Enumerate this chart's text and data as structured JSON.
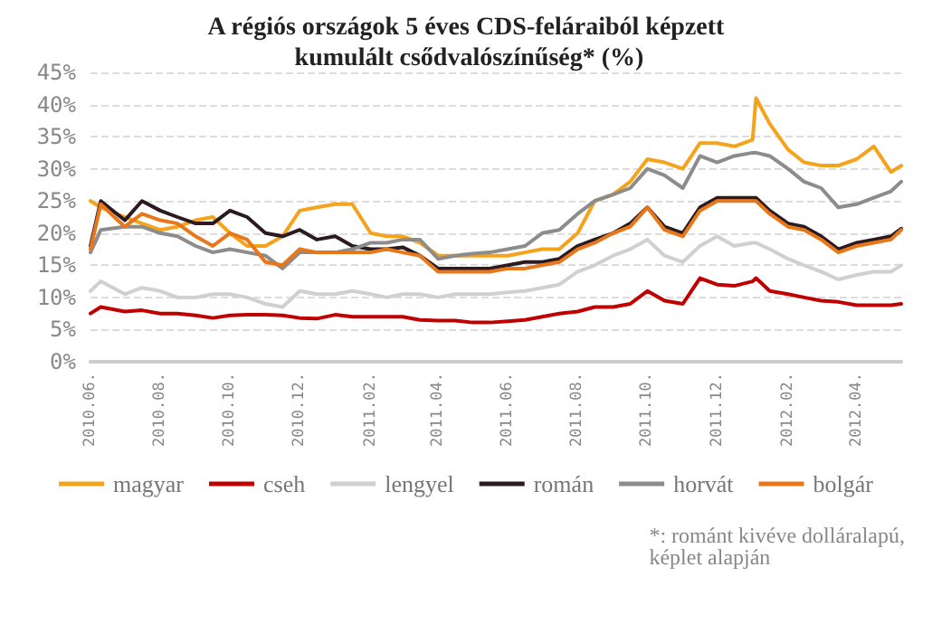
{
  "chart_data": {
    "type": "line",
    "title": "A régiós országok 5 éves CDS-feláraiból képzett kumulált csődvalószínűség* (%)",
    "x": [
      "2010-06-01",
      "2010-06-10",
      "2010-07-01",
      "2010-07-16",
      "2010-08-01",
      "2010-08-16",
      "2010-09-01",
      "2010-09-16",
      "2010-10-01",
      "2010-10-16",
      "2010-11-01",
      "2010-11-16",
      "2010-12-01",
      "2010-12-16",
      "2011-01-01",
      "2011-01-16",
      "2011-02-01",
      "2011-02-15",
      "2011-03-01",
      "2011-03-16",
      "2011-04-01",
      "2011-04-16",
      "2011-05-01",
      "2011-05-16",
      "2011-06-01",
      "2011-06-16",
      "2011-07-01",
      "2011-07-16",
      "2011-08-01",
      "2011-08-16",
      "2011-09-01",
      "2011-09-16",
      "2011-10-01",
      "2011-10-16",
      "2011-11-01",
      "2011-11-16",
      "2011-12-01",
      "2011-12-16",
      "2012-01-01",
      "2012-01-04",
      "2012-01-16",
      "2012-02-01",
      "2012-02-15",
      "2012-03-01",
      "2012-03-16",
      "2012-04-01",
      "2012-04-16",
      "2012-05-01",
      "2012-05-10"
    ],
    "series": [
      {
        "name": "magyar",
        "color": "#f5a31b",
        "values": [
          25,
          24,
          22.5,
          21.5,
          20.5,
          21,
          22,
          22.5,
          20,
          18,
          18,
          19.5,
          23.5,
          24,
          24.5,
          24.5,
          20,
          19.5,
          19.5,
          18.5,
          16.5,
          16.5,
          16.5,
          16.5,
          16.5,
          17,
          17.5,
          17.5,
          20,
          25,
          26,
          28,
          31.5,
          31,
          30,
          34,
          34,
          33.5,
          34.5,
          41,
          37,
          33,
          31,
          30.5,
          30.5,
          31.5,
          33.5,
          29.5,
          30.5
        ]
      },
      {
        "name": "cseh",
        "color": "#c00000",
        "values": [
          7.5,
          8.5,
          7.8,
          8,
          7.5,
          7.5,
          7.2,
          6.8,
          7.2,
          7.3,
          7.3,
          7.2,
          6.8,
          6.7,
          7.3,
          7,
          7,
          7,
          7,
          6.5,
          6.4,
          6.4,
          6.1,
          6.1,
          6.3,
          6.5,
          7,
          7.5,
          7.8,
          8.5,
          8.5,
          9,
          11,
          9.5,
          9,
          13,
          12,
          11.8,
          12.5,
          13,
          11,
          10.5,
          10,
          9.5,
          9.3,
          8.8,
          8.8,
          8.8,
          9
        ]
      },
      {
        "name": "lengyel",
        "color": "#d0d0d0",
        "values": [
          11,
          12.5,
          10.5,
          11.5,
          11,
          10,
          10,
          10.5,
          10.5,
          10,
          9,
          8.5,
          11,
          10.5,
          10.5,
          11,
          10.5,
          10,
          10.5,
          10.5,
          10,
          10.5,
          10.5,
          10.5,
          10.8,
          11,
          11.5,
          12,
          14,
          15,
          16.5,
          17.5,
          19,
          16.5,
          15.5,
          18,
          19.5,
          18,
          18.5,
          18.5,
          17.5,
          16,
          15,
          14,
          12.8,
          13.5,
          14,
          14,
          15
        ]
      },
      {
        "name": "román",
        "color": "#2b1a22",
        "values": [
          18,
          25,
          22,
          25,
          23.5,
          22.5,
          21.5,
          21.5,
          23.5,
          22.5,
          20,
          19.5,
          20.5,
          19,
          19.5,
          18,
          17.5,
          17.5,
          17.8,
          16.5,
          14.5,
          14.5,
          14.5,
          14.5,
          15,
          15.5,
          15.5,
          16,
          18,
          19,
          20,
          21.5,
          24,
          21,
          20,
          24,
          25.5,
          25.5,
          25.5,
          25.5,
          23.5,
          21.5,
          21,
          19.5,
          17.5,
          18.5,
          19,
          19.5,
          20.7
        ]
      },
      {
        "name": "horvát",
        "color": "#8c8c8c",
        "values": [
          17,
          20.5,
          21,
          21,
          20,
          19.5,
          18,
          17,
          17.5,
          17,
          16.5,
          14.5,
          17,
          17,
          17,
          17.5,
          18.5,
          18.5,
          19,
          19,
          16,
          16.5,
          16.8,
          17,
          17.5,
          18,
          20,
          20.5,
          23,
          25,
          26,
          27,
          30,
          29,
          27,
          32,
          31,
          32,
          32.5,
          32.5,
          32,
          30,
          28,
          27,
          24,
          24.5,
          25.5,
          26.5,
          28
        ]
      },
      {
        "name": "bolgár",
        "color": "#e8771a",
        "values": [
          17.5,
          24.5,
          21,
          23,
          22,
          21.5,
          19.5,
          18,
          20,
          19,
          15.5,
          15,
          17.5,
          17,
          17,
          17,
          17,
          17.5,
          17,
          16.5,
          14,
          14,
          14,
          14,
          14.5,
          14.5,
          15,
          15.5,
          17.5,
          18.5,
          20,
          21,
          24,
          20.5,
          19.5,
          23.5,
          25,
          25,
          25,
          25,
          23,
          21,
          20.5,
          19,
          17,
          18,
          18.5,
          19,
          20.5
        ]
      }
    ],
    "xlim": [
      "2010-06-01",
      "2012-05-10"
    ],
    "xticks": [
      {
        "value": "2010-06-01",
        "label": "2010.06."
      },
      {
        "value": "2010-08-01",
        "label": "2010.08."
      },
      {
        "value": "2010-10-01",
        "label": "2010.10."
      },
      {
        "value": "2010-12-01",
        "label": "2010.12."
      },
      {
        "value": "2011-02-01",
        "label": "2011.02."
      },
      {
        "value": "2011-04-01",
        "label": "2011.04."
      },
      {
        "value": "2011-06-01",
        "label": "2011.06."
      },
      {
        "value": "2011-08-01",
        "label": "2011.08."
      },
      {
        "value": "2011-10-01",
        "label": "2011.10."
      },
      {
        "value": "2011-12-01",
        "label": "2011.12."
      },
      {
        "value": "2012-02-01",
        "label": "2012.02."
      },
      {
        "value": "2012-04-01",
        "label": "2012.04."
      }
    ],
    "ylim": [
      0,
      45
    ],
    "yticks": [
      {
        "value": 0,
        "label": "0%"
      },
      {
        "value": 5,
        "label": "5%"
      },
      {
        "value": 10,
        "label": "10%"
      },
      {
        "value": 15,
        "label": "15%"
      },
      {
        "value": 20,
        "label": "20%"
      },
      {
        "value": 25,
        "label": "25%"
      },
      {
        "value": 30,
        "label": "30%"
      },
      {
        "value": 35,
        "label": "35%"
      },
      {
        "value": 40,
        "label": "40%"
      },
      {
        "value": 45,
        "label": "45%"
      }
    ],
    "grid": "y",
    "legend": "bottom",
    "marker": "none",
    "line_style": "solid",
    "annotations": [
      "*: románt kivéve dolláralapú, képlet alapján"
    ]
  }
}
